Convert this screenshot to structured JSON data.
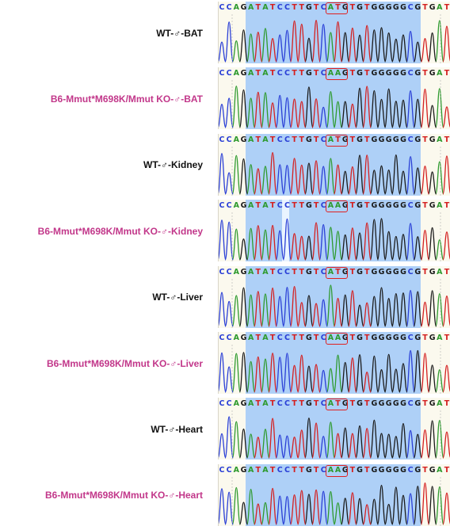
{
  "samples": [
    {
      "label": "WT-♂-BAT",
      "type": "wt",
      "sequence": "CCAGATATCCTTGTCATGTGTGGGGGCGTGAT"
    },
    {
      "label": "B6-Mmut*M698K/Mmut KO-♂-BAT",
      "type": "mut",
      "sequence": "CCAGATATCCTTGTCAAGTGTGGGGGCGTGAT"
    },
    {
      "label": "WT-♂-Kidney",
      "type": "wt",
      "sequence": "CCAGATATCCTTGTCATGTGTGGGGGCGTGAT"
    },
    {
      "label": "B6-Mmut*M698K/Mmut KO-♂-Kidney",
      "type": "mut",
      "sequence": "CCAGATATCCTTGTCAAGTGTGGGGGCGTGAT"
    },
    {
      "label": "WT-♂-Liver",
      "type": "wt",
      "sequence": "CCAGATATCCTTGTCATGTGTGGGGGCGTGAT"
    },
    {
      "label": "B6-Mmut*M698K/Mmut KO-♂-Liver",
      "type": "mut",
      "sequence": "CCAGATATCCTTGTCAAGTGTGGGGGCGTGAT"
    },
    {
      "label": "WT-♂-Heart",
      "type": "wt",
      "sequence": "CCAGATATCCTTGTCATGTGTGGGGGCGTGAT"
    },
    {
      "label": "B6-Mmut*M698K/Mmut KO-♂-Heart",
      "type": "mut",
      "sequence": "CCAGATATCCTTGTCAAGTGTGGGGGCGTGAT"
    }
  ],
  "codon": {
    "start": 15,
    "length": 3
  },
  "colors": {
    "A": "#2e9a2e",
    "C": "#2a3fd6",
    "G": "#1a1a1a",
    "T": "#d42020",
    "box": "#e02020"
  }
}
